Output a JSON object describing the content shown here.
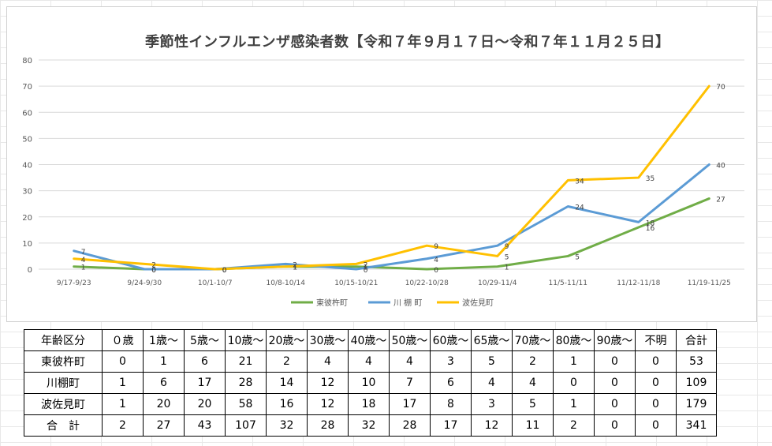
{
  "chart_data": {
    "type": "line",
    "title": "季節性インフルエンザ感染者数【令和７年９月１７日～令和７年１１月２５日】",
    "xlabel": "",
    "ylabel": "",
    "ylim": [
      0,
      80
    ],
    "yticks": [
      0,
      10,
      20,
      30,
      40,
      50,
      60,
      70,
      80
    ],
    "grid": true,
    "legend_position": "bottom",
    "categories": [
      "9/17-9/23",
      "9/24-9/30",
      "10/1-10/7",
      "10/8-10/14",
      "10/15-10/21",
      "10/22-10/28",
      "10/29-11/4",
      "11/5-11/11",
      "11/12-11/18",
      "11/19-11/25"
    ],
    "series": [
      {
        "name": "東彼杵町",
        "color": "#70ad47",
        "values": [
          1,
          0,
          0,
          1,
          1,
          0,
          1,
          5,
          16,
          27
        ]
      },
      {
        "name": "川 棚 町",
        "color": "#5b9bd5",
        "values": [
          7,
          0,
          0,
          2,
          0,
          4,
          9,
          24,
          18,
          40
        ]
      },
      {
        "name": "波佐見町",
        "color": "#ffc000",
        "values": [
          4,
          2,
          0,
          1,
          2,
          9,
          5,
          34,
          35,
          70
        ]
      }
    ]
  },
  "table": {
    "headers": [
      "年齢区分",
      "０歳",
      "1歳～",
      "5歳～",
      "10歳～",
      "20歳～",
      "30歳～",
      "40歳～",
      "50歳～",
      "60歳～",
      "65歳～",
      "70歳～",
      "80歳～",
      "90歳～",
      "不明",
      "合計"
    ],
    "rows": [
      {
        "label": "東彼杵町",
        "cells": [
          "0",
          "1",
          "6",
          "21",
          "2",
          "4",
          "4",
          "4",
          "3",
          "5",
          "2",
          "1",
          "0",
          "0",
          "53"
        ]
      },
      {
        "label": "川棚町",
        "cells": [
          "1",
          "6",
          "17",
          "28",
          "14",
          "12",
          "10",
          "7",
          "6",
          "4",
          "4",
          "0",
          "0",
          "0",
          "109"
        ]
      },
      {
        "label": "波佐見町",
        "cells": [
          "1",
          "20",
          "20",
          "58",
          "16",
          "12",
          "18",
          "17",
          "8",
          "3",
          "5",
          "1",
          "0",
          "0",
          "179"
        ]
      },
      {
        "label": "合　計",
        "cells": [
          "2",
          "27",
          "43",
          "107",
          "32",
          "28",
          "32",
          "28",
          "17",
          "12",
          "11",
          "2",
          "0",
          "0",
          "341"
        ]
      }
    ]
  }
}
